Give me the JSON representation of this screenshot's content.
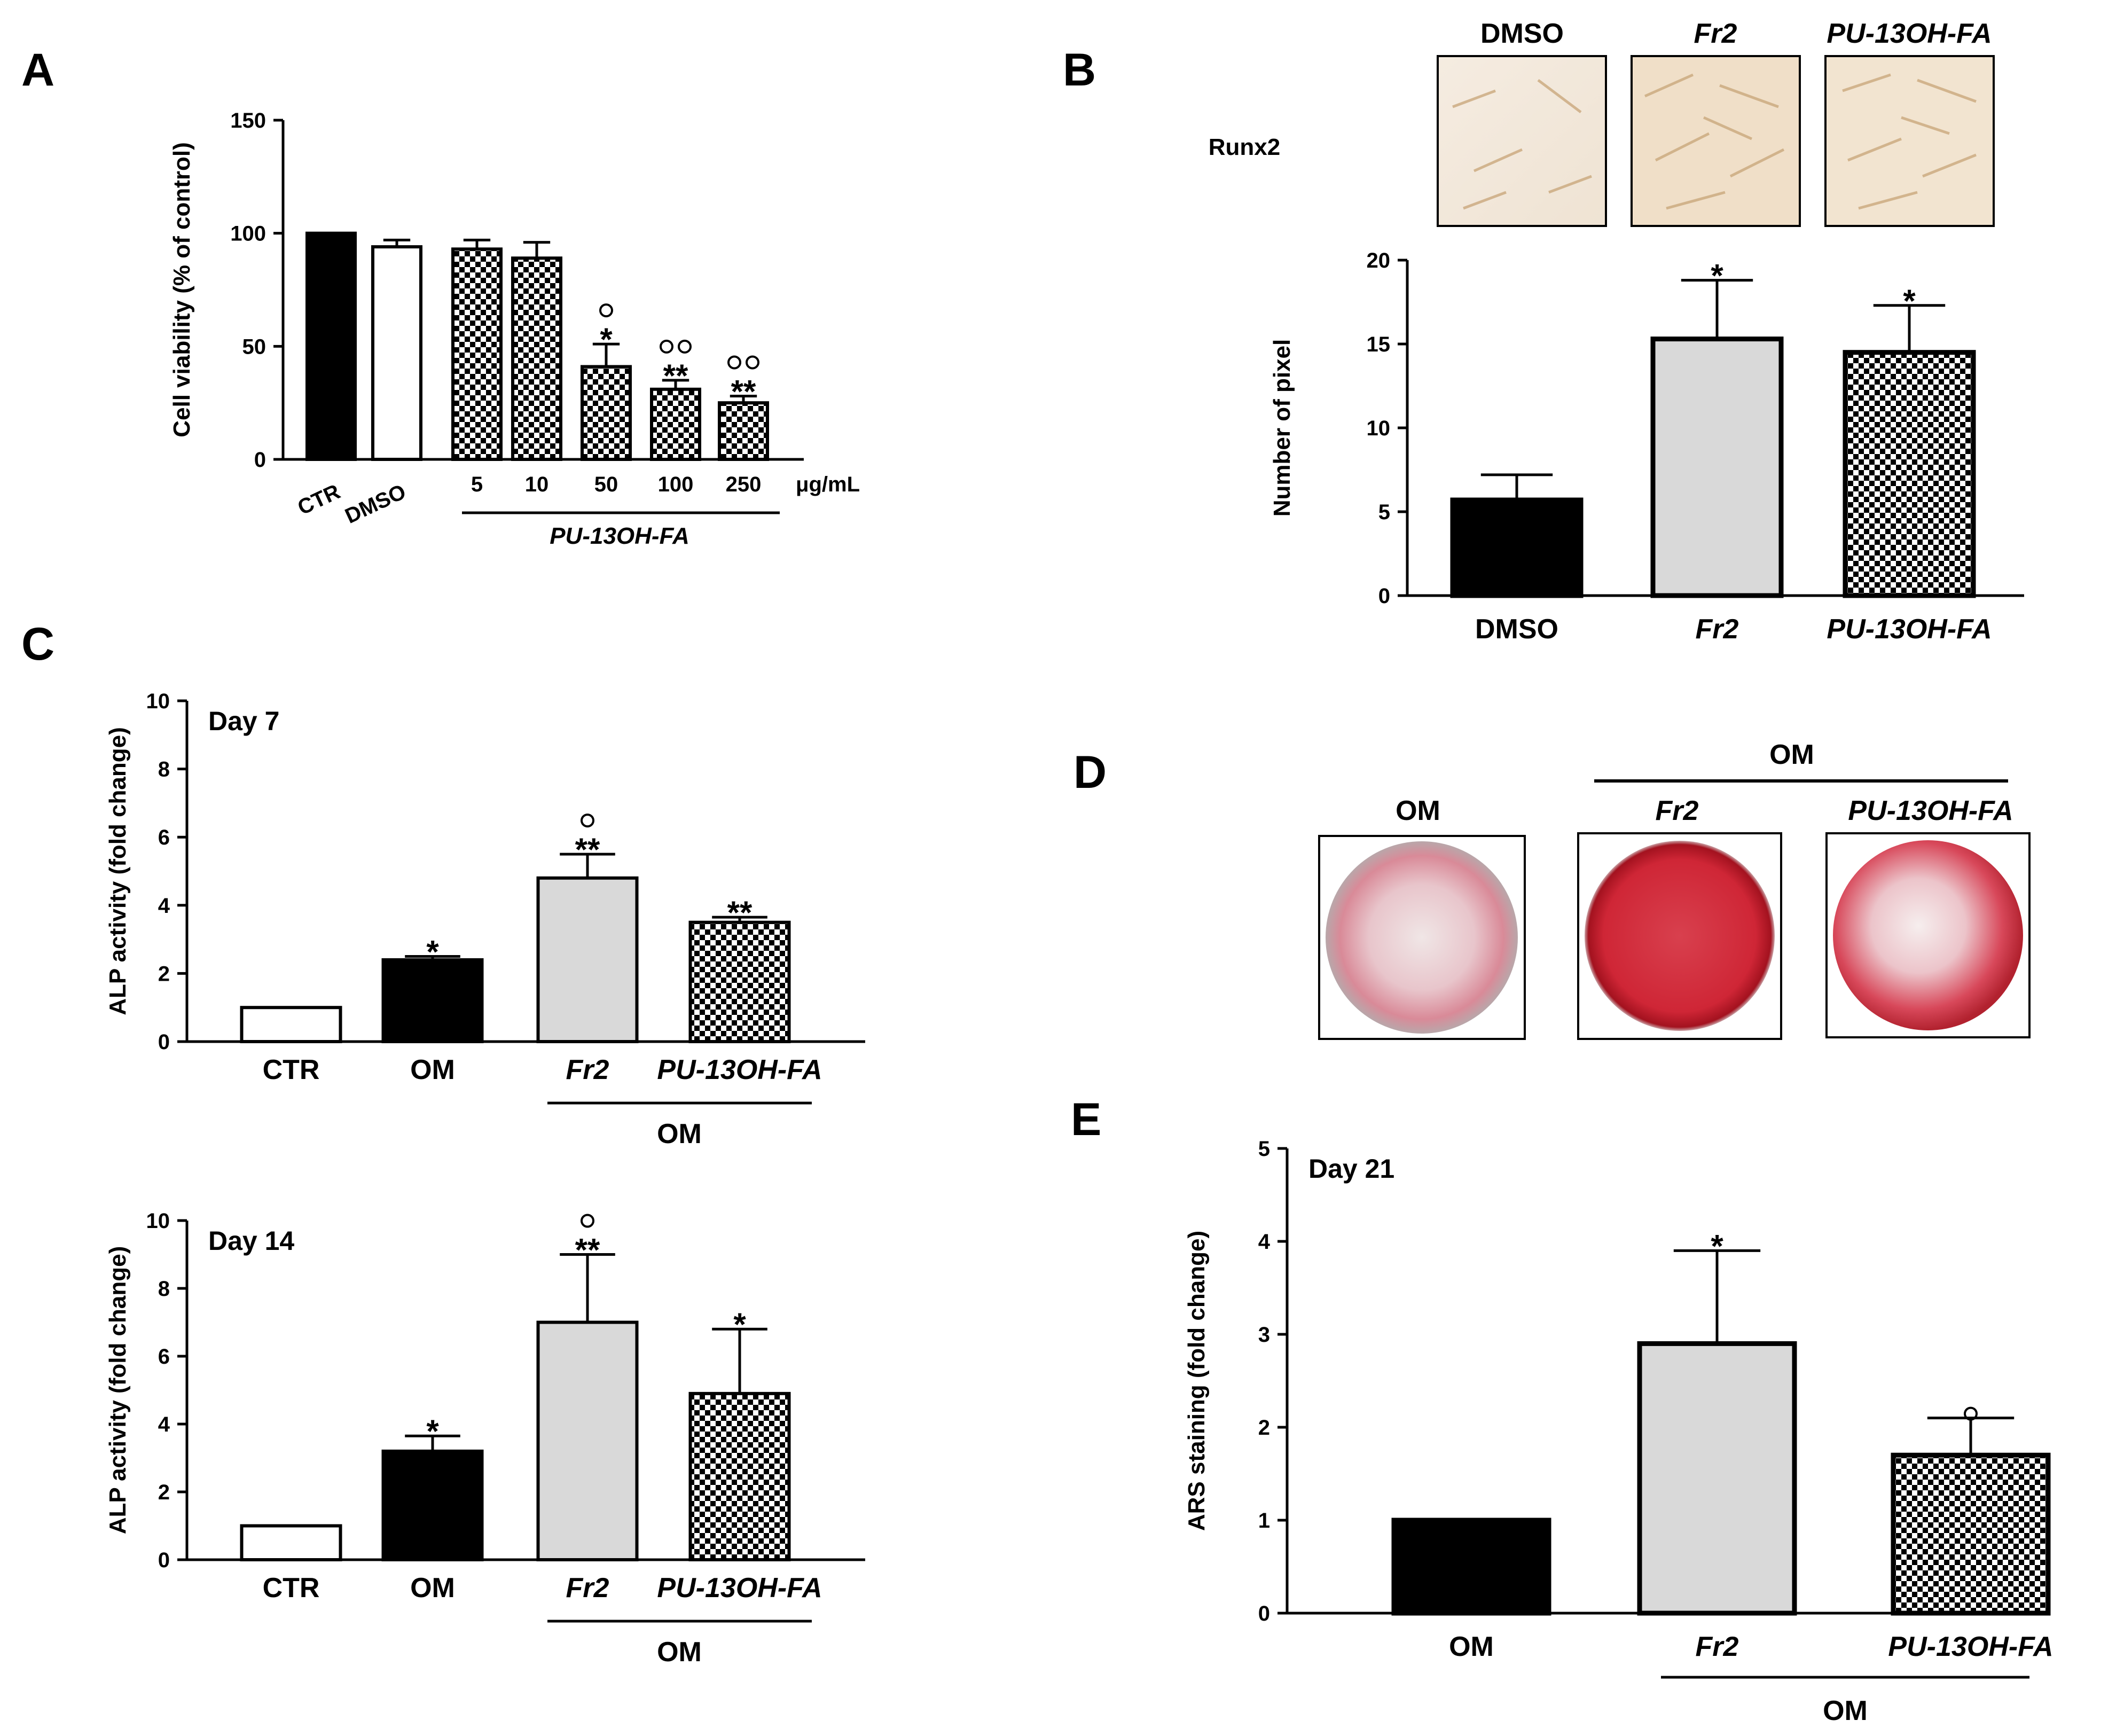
{
  "panels": {
    "A": "A",
    "B": "B",
    "C": "C",
    "D": "D",
    "E": "E"
  },
  "colors": {
    "black": "#000000",
    "white": "#ffffff",
    "gray": "#d9d9d9",
    "om_red": "#c8102e"
  },
  "chart_data": [
    {
      "id": "A",
      "type": "bar",
      "ylabel": "Cell viability (% of control)",
      "yticks": [
        0,
        50,
        100,
        150
      ],
      "ylim": [
        0,
        150
      ],
      "categories": [
        "CTR",
        "DMSO",
        "5",
        "10",
        "50",
        "100",
        "250"
      ],
      "values": [
        100,
        94,
        93,
        89,
        41,
        31,
        25
      ],
      "errors": [
        0,
        3,
        4,
        7,
        10,
        4,
        3
      ],
      "fills": [
        "black",
        "white",
        "checker",
        "checker",
        "checker",
        "checker",
        "checker"
      ],
      "significance": [
        "",
        "",
        "",
        "",
        "*",
        "**",
        "**"
      ],
      "degree_marks": [
        "",
        "",
        "",
        "",
        "o",
        "oo",
        "oo"
      ],
      "unit_label": "μg/mL",
      "group_label": "PU-13OH-FA"
    },
    {
      "id": "B",
      "type": "bar",
      "ylabel": "Number of pixel",
      "yticks": [
        0,
        5,
        10,
        15,
        20
      ],
      "ylim": [
        0,
        20
      ],
      "categories": [
        "DMSO",
        "Fr2",
        "PU-13OH-FA"
      ],
      "values": [
        5.7,
        15.3,
        14.5
      ],
      "errors": [
        1.5,
        3.5,
        2.8
      ],
      "fills": [
        "black",
        "gray",
        "checker"
      ],
      "significance": [
        "",
        "*",
        "*"
      ],
      "image_row_label": "Runx2",
      "image_labels": [
        "DMSO",
        "Fr2",
        "PU-13OH-FA"
      ]
    },
    {
      "id": "C-day7",
      "type": "bar",
      "annotation": "Day 7",
      "ylabel": "ALP activity (fold change)",
      "yticks": [
        0,
        2,
        4,
        6,
        8,
        10
      ],
      "ylim": [
        0,
        10
      ],
      "categories": [
        "CTR",
        "OM",
        "Fr2",
        "PU-13OH-FA"
      ],
      "values": [
        1.0,
        2.4,
        4.8,
        3.5
      ],
      "errors": [
        0,
        0.1,
        0.7,
        0.15
      ],
      "fills": [
        "white",
        "black",
        "gray",
        "checker"
      ],
      "significance": [
        "",
        "*",
        "**",
        "**"
      ],
      "degree_marks": [
        "",
        "",
        "o",
        ""
      ],
      "group_label": "OM"
    },
    {
      "id": "C-day14",
      "type": "bar",
      "annotation": "Day 14",
      "ylabel": "ALP activity (fold change)",
      "yticks": [
        0,
        2,
        4,
        6,
        8,
        10
      ],
      "ylim": [
        0,
        10
      ],
      "categories": [
        "CTR",
        "OM",
        "Fr2",
        "PU-13OH-FA"
      ],
      "values": [
        1.0,
        3.2,
        7.0,
        4.9
      ],
      "errors": [
        0,
        0.45,
        2.0,
        1.9
      ],
      "fills": [
        "white",
        "black",
        "gray",
        "checker"
      ],
      "significance": [
        "",
        "*",
        "**",
        "*"
      ],
      "degree_marks": [
        "",
        "",
        "o",
        ""
      ],
      "group_label": "OM"
    },
    {
      "id": "E",
      "type": "bar",
      "annotation": "Day 21",
      "ylabel": "ARS staining (fold change)",
      "yticks": [
        0,
        1,
        2,
        3,
        4,
        5
      ],
      "ylim": [
        0,
        5
      ],
      "categories": [
        "OM",
        "Fr2",
        "PU-13OH-FA"
      ],
      "values": [
        1.0,
        2.9,
        1.7
      ],
      "errors": [
        0,
        1.0,
        0.4
      ],
      "fills": [
        "black",
        "gray",
        "checker"
      ],
      "significance": [
        "",
        "*",
        ""
      ],
      "degree_marks": [
        "",
        "",
        "o"
      ],
      "group_label": "OM"
    }
  ],
  "panel_d": {
    "labels": [
      "OM",
      "Fr2",
      "PU-13OH-FA"
    ],
    "group_label": "OM"
  }
}
